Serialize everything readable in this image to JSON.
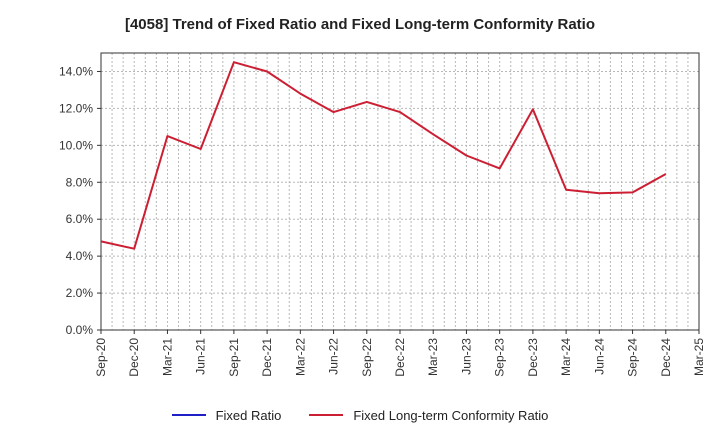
{
  "chart_data": {
    "type": "line",
    "title": "[4058]  Trend of Fixed Ratio and Fixed Long-term Conformity Ratio",
    "xlabel": "",
    "ylabel": "",
    "x_tick_labels": [
      "Sep-20",
      "Dec-20",
      "Mar-21",
      "Jun-21",
      "Sep-21",
      "Dec-21",
      "Mar-22",
      "Jun-22",
      "Sep-22",
      "Dec-22",
      "Mar-23",
      "Jun-23",
      "Sep-23",
      "Dec-23",
      "Mar-24",
      "Jun-24",
      "Sep-24",
      "Dec-24",
      "Mar-25"
    ],
    "y_tick_labels": [
      "0.0%",
      "2.0%",
      "4.0%",
      "6.0%",
      "8.0%",
      "10.0%",
      "12.0%",
      "14.0%"
    ],
    "ylim": [
      0,
      15
    ],
    "grid": true,
    "legend_position": "bottom",
    "series": [
      {
        "name": "Fixed Ratio",
        "color": "#1f1fc8",
        "x": [],
        "values": []
      },
      {
        "name": "Fixed Long-term Conformity Ratio",
        "color": "#cc1f33",
        "x": [
          "Sep-20",
          "Dec-20",
          "Mar-21",
          "Jun-21",
          "Sep-21",
          "Dec-21",
          "Mar-22",
          "Jun-22",
          "Sep-22",
          "Dec-22",
          "Mar-23",
          "Jun-23",
          "Sep-23",
          "Dec-23",
          "Mar-24",
          "Jun-24",
          "Sep-24",
          "Dec-24"
        ],
        "values": [
          4.8,
          4.4,
          10.5,
          9.8,
          14.5,
          14.0,
          12.8,
          11.8,
          12.35,
          11.8,
          10.6,
          9.45,
          8.75,
          11.95,
          7.6,
          7.4,
          7.45,
          8.45
        ]
      }
    ]
  }
}
